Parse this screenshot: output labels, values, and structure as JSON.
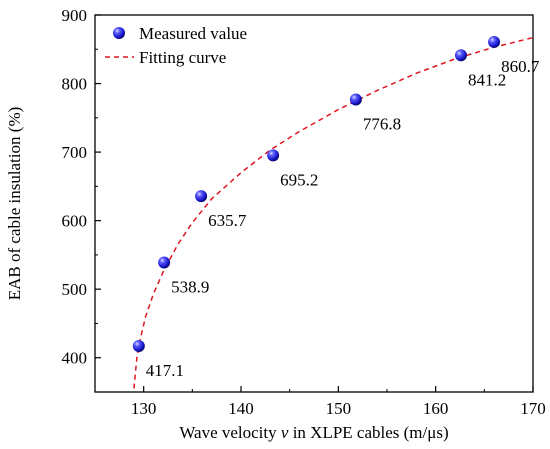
{
  "chart_data": {
    "type": "scatter",
    "title": "",
    "xlabel_parts": [
      "Wave velocity ",
      "v",
      " in XLPE cables (m/μs)"
    ],
    "ylabel": "EAB of cable insulation (%)",
    "xlim": [
      125,
      170
    ],
    "ylim": [
      350,
      900
    ],
    "xticks": [
      130,
      140,
      150,
      160,
      170
    ],
    "yticks": [
      400,
      500,
      600,
      700,
      800,
      900
    ],
    "grid": false,
    "legend_position": "top-left",
    "series": [
      {
        "name": "Measured value",
        "kind": "points",
        "color": "#1a1ad0",
        "x": [
          129.5,
          132.1,
          135.9,
          143.3,
          151.8,
          162.6,
          166.0
        ],
        "y": [
          417.1,
          538.9,
          635.7,
          695.2,
          776.8,
          841.2,
          860.7
        ],
        "labels": [
          "417.1",
          "538.9",
          "635.7",
          "695.2",
          "776.8",
          "841.2",
          "860.7"
        ]
      },
      {
        "name": "Fitting curve",
        "kind": "dashed-line",
        "color": "#e0151f",
        "x": [
          129.0,
          129.3,
          129.7,
          130.2,
          131.0,
          132.0,
          133.5,
          135.0,
          137.0,
          140.0,
          143.0,
          146.0,
          150.0,
          154.0,
          158.0,
          162.0,
          166.0,
          170.0
        ],
        "y": [
          355,
          400,
          430,
          460,
          493,
          525,
          565,
          597,
          632,
          670,
          703,
          730,
          762,
          790,
          815,
          836,
          853,
          867
        ]
      }
    ]
  }
}
